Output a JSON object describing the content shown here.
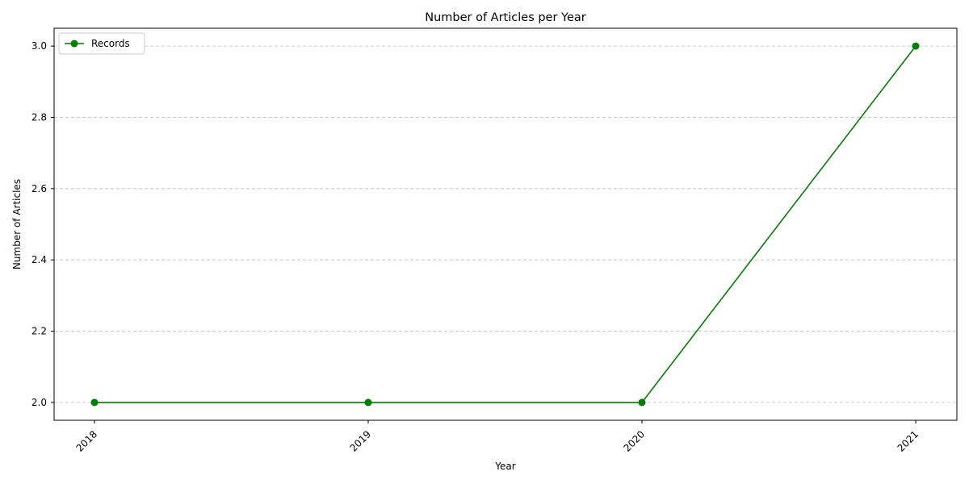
{
  "chart_data": {
    "type": "line",
    "title": "Number of Articles per Year",
    "xlabel": "Year",
    "ylabel": "Number of Articles",
    "categories": [
      "2018",
      "2019",
      "2020",
      "2021"
    ],
    "series": [
      {
        "name": "Records",
        "values": [
          2,
          2,
          2,
          3
        ],
        "color": "#008000",
        "marker": "circle"
      }
    ],
    "ylim": [
      1.95,
      3.05
    ],
    "yticks": [
      "2.0",
      "2.2",
      "2.4",
      "2.6",
      "2.8",
      "3.0"
    ],
    "grid": "y-dashed",
    "legend_position": "top-left"
  }
}
